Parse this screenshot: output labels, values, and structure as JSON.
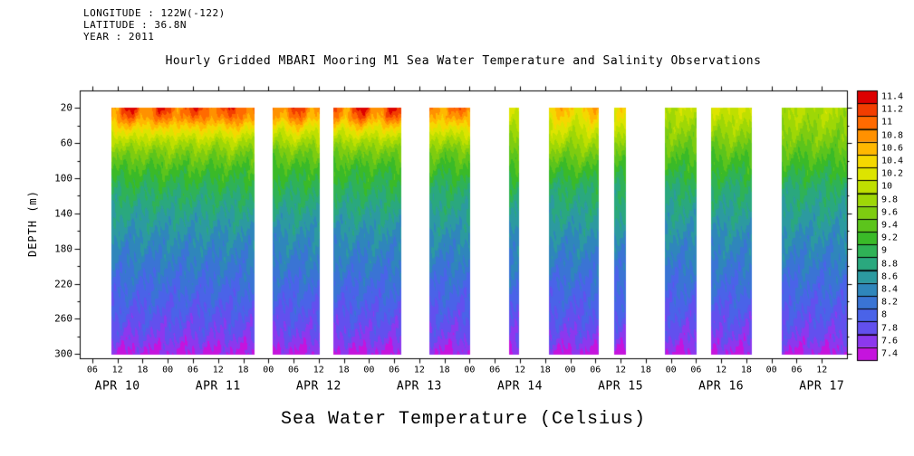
{
  "header": {
    "info_lines": [
      "LONGITUDE : 122W(-122)",
      "LATITUDE : 36.8N",
      "YEAR : 2011"
    ],
    "title": "Hourly Gridded MBARI Mooring M1 Sea Water Temperature and Salinity Observations"
  },
  "footer": {
    "xlabel": "Sea Water Temperature (Celsius)"
  },
  "chart_data": {
    "type": "heatmap",
    "title": "Hourly Gridded MBARI Mooring M1 Sea Water Temperature and Salinity Observations",
    "ylabel": "DEPTH (m)",
    "colorbar_title": "Sea Water Temperature (Celsius)",
    "y_ticks": [
      20,
      60,
      100,
      140,
      180,
      220,
      260,
      300
    ],
    "y_minor_ticks": [
      40,
      80,
      120,
      160,
      200,
      240,
      280
    ],
    "depth_range": [
      20,
      300
    ],
    "grid": false,
    "legend_position": "right-colorbar",
    "time_axis": {
      "hours_reference": "hours since APR 10 00:00 (year 2011 shown on plot)",
      "hour_ticks": {
        "start": 6,
        "end": 180,
        "step": 6,
        "labels_cycle": [
          "06",
          "12",
          "18",
          "00"
        ]
      },
      "date_labels": [
        {
          "hour": 12,
          "label": "APR 10"
        },
        {
          "hour": 36,
          "label": "APR 11"
        },
        {
          "hour": 60,
          "label": "APR 12"
        },
        {
          "hour": 84,
          "label": "APR 13"
        },
        {
          "hour": 108,
          "label": "APR 14"
        },
        {
          "hour": 132,
          "label": "APR 15"
        },
        {
          "hour": 156,
          "label": "APR 16"
        },
        {
          "hour": 180,
          "label": "APR 17"
        }
      ]
    },
    "levels": {
      "min": 7.4,
      "max": 11.4,
      "step": 0.2
    },
    "colorbar": {
      "values_top_to_bottom": [
        "11.4",
        "11.2",
        "11",
        "10.8",
        "10.6",
        "10.4",
        "10.2",
        "10",
        "9.8",
        "9.6",
        "9.4",
        "9.2",
        "9",
        "8.8",
        "8.6",
        "8.4",
        "8.2",
        "8",
        "7.8",
        "7.6",
        "7.4"
      ],
      "colors_top_to_bottom": [
        "#dd0000",
        "#f23d00",
        "#ff6a00",
        "#ff9100",
        "#ffb800",
        "#f5d800",
        "#dde400",
        "#bfdf00",
        "#9ed706",
        "#7ecc10",
        "#5cc41c",
        "#3aba28",
        "#2fb256",
        "#2aa87e",
        "#2c9aa0",
        "#2f86bb",
        "#3a74d4",
        "#4a63e8",
        "#6250ee",
        "#8c38ee",
        "#c514dd"
      ]
    },
    "profile_depths": [
      20,
      30,
      40,
      55,
      70,
      90,
      110,
      140,
      170,
      200,
      230,
      260,
      280,
      300
    ],
    "segments": [
      {
        "start_hour": 10.5,
        "end_hour": 44.5,
        "temps": [
          11.2,
          11.0,
          10.6,
          10.1,
          9.7,
          9.35,
          9.1,
          8.8,
          8.55,
          8.35,
          8.15,
          7.95,
          7.8,
          7.55
        ]
      },
      {
        "start_hour": 49.0,
        "end_hour": 60.0,
        "temps": [
          11.1,
          10.9,
          10.5,
          10.05,
          9.65,
          9.3,
          9.1,
          8.8,
          8.55,
          8.35,
          8.15,
          7.95,
          7.8,
          7.55
        ]
      },
      {
        "start_hour": 63.5,
        "end_hour": 79.5,
        "temps": [
          11.2,
          11.0,
          10.55,
          10.05,
          9.65,
          9.3,
          9.1,
          8.8,
          8.55,
          8.35,
          8.15,
          7.95,
          7.8,
          7.55
        ]
      },
      {
        "start_hour": 86.5,
        "end_hour": 96.0,
        "temps": [
          11.0,
          10.8,
          10.45,
          10.0,
          9.6,
          9.3,
          9.05,
          8.8,
          8.55,
          8.35,
          8.15,
          7.95,
          7.8,
          7.55
        ]
      },
      {
        "start_hour": 105.5,
        "end_hour": 107.5,
        "temps": [
          10.3,
          10.2,
          10.05,
          9.85,
          9.6,
          9.3,
          9.05,
          8.8,
          8.55,
          8.35,
          8.15,
          7.95,
          7.8,
          7.55
        ]
      },
      {
        "start_hour": 115.0,
        "end_hour": 126.5,
        "temps": [
          10.6,
          10.45,
          10.25,
          10.0,
          9.7,
          9.35,
          9.05,
          8.8,
          8.55,
          8.35,
          8.15,
          7.95,
          7.8,
          7.55
        ]
      },
      {
        "start_hour": 130.5,
        "end_hour": 133.0,
        "temps": [
          10.4,
          10.3,
          10.1,
          9.85,
          9.6,
          9.3,
          9.05,
          8.8,
          8.55,
          8.35,
          8.15,
          7.95,
          7.8,
          7.55
        ]
      },
      {
        "start_hour": 142.5,
        "end_hour": 150.0,
        "temps": [
          10.1,
          10.0,
          9.9,
          9.7,
          9.5,
          9.25,
          9.0,
          8.78,
          8.55,
          8.35,
          8.15,
          7.95,
          7.8,
          7.55
        ]
      },
      {
        "start_hour": 153.5,
        "end_hour": 163.0,
        "temps": [
          10.2,
          10.1,
          9.95,
          9.75,
          9.5,
          9.25,
          9.0,
          8.78,
          8.55,
          8.35,
          8.15,
          7.95,
          7.8,
          7.55
        ]
      },
      {
        "start_hour": 170.5,
        "end_hour": 186.0,
        "temps": [
          10.0,
          9.95,
          9.85,
          9.7,
          9.5,
          9.25,
          9.0,
          8.78,
          8.55,
          8.35,
          8.15,
          7.95,
          7.8,
          7.55
        ]
      }
    ]
  }
}
